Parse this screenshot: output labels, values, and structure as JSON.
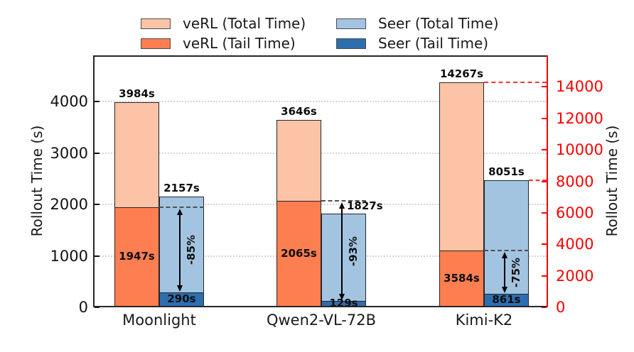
{
  "chart_data": {
    "type": "bar",
    "title": "",
    "categories": [
      "Moonlight",
      "Qwen2-VL-72B",
      "Kimi-K2"
    ],
    "group_axis": [
      "left",
      "left",
      "right"
    ],
    "series": [
      {
        "name": "veRL (Total Time)",
        "role": "verl-total",
        "color": "#FDC3A7",
        "values": [
          3984,
          3646,
          14267
        ],
        "labels": [
          "3984s",
          "3646s",
          "14267s"
        ]
      },
      {
        "name": "veRL (Tail Time)",
        "role": "verl-tail",
        "color": "#FD7E50",
        "values": [
          1947,
          2065,
          3584
        ],
        "labels": [
          "1947s",
          "2065s",
          "3584s"
        ]
      },
      {
        "name": "Seer (Total Time)",
        "role": "seer-total",
        "color": "#A3C4E1",
        "values": [
          2157,
          1827,
          8051
        ],
        "labels": [
          "2157s",
          "1827s",
          "8051s"
        ]
      },
      {
        "name": "Seer (Tail Time)",
        "role": "seer-tail",
        "color": "#2D6EAF",
        "values": [
          290,
          129,
          861
        ],
        "labels": [
          "290s",
          "129s",
          "861s"
        ]
      }
    ],
    "reduction_labels": [
      "-85%",
      "-93%",
      "-75%"
    ],
    "left_axis": {
      "label": "Rollout Time (s)",
      "ticks": [
        0,
        1000,
        2000,
        3000,
        4000
      ],
      "max": 4900,
      "color": "#111111"
    },
    "right_axis": {
      "label": "Rollout Time (s)",
      "ticks": [
        0,
        2000,
        4000,
        6000,
        8000,
        10000,
        12000,
        14000
      ],
      "max": 16000,
      "color": "#ff0000"
    },
    "grid": true,
    "legend_position": "top-center"
  }
}
